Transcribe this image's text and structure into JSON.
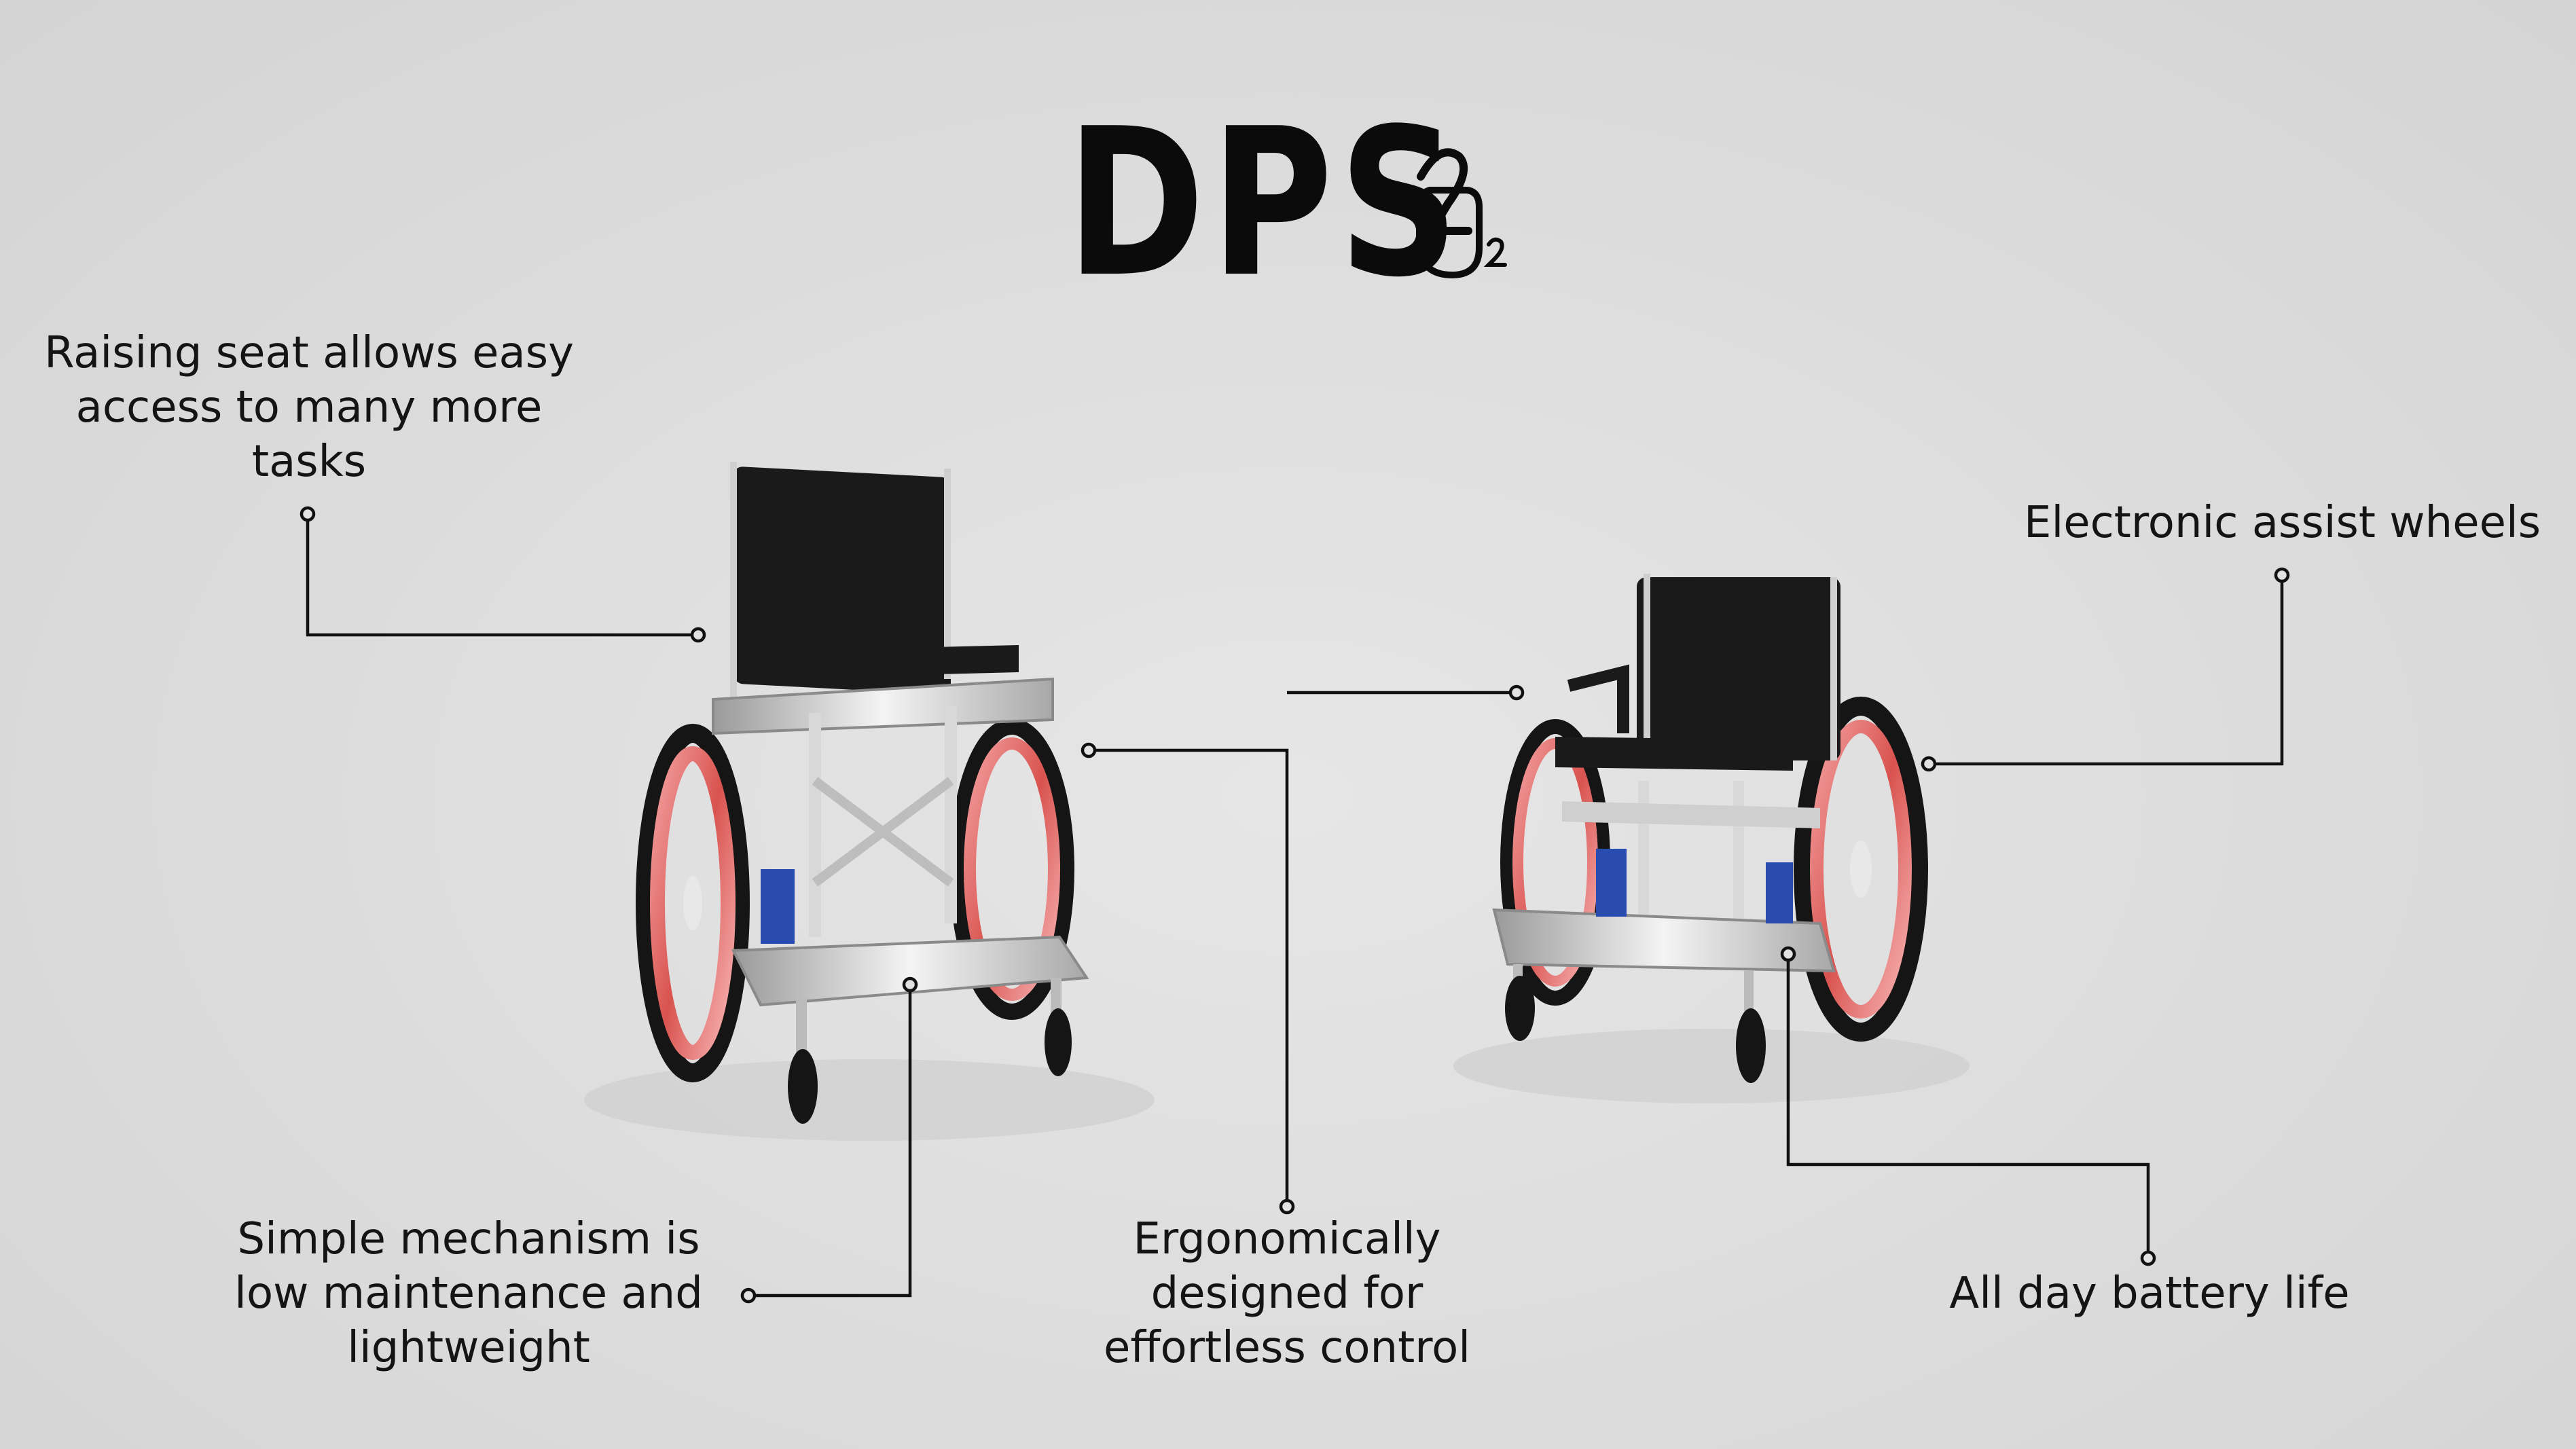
{
  "logo": {
    "text": "DPS",
    "mark_icon": "d2-monogram-icon"
  },
  "callouts": {
    "raising_seat": {
      "lines": [
        "Raising seat allows easy",
        "access to many more",
        "tasks"
      ]
    },
    "electronic_wheels": {
      "lines": [
        "Electronic assist wheels"
      ]
    },
    "simple_mechanism": {
      "lines": [
        "Simple mechanism is",
        "low maintenance and",
        "lightweight"
      ]
    },
    "ergonomic": {
      "lines": [
        "Ergonomically",
        "designed for",
        "effortless control"
      ]
    },
    "battery": {
      "lines": [
        "All day battery life"
      ]
    }
  },
  "colors": {
    "background": "#dcdcdc",
    "text": "#111111",
    "seat": "#1a1a1a",
    "frame": "#d9d9d9",
    "wheel_rim": "#e06a6a",
    "tire": "#151515",
    "motor": "#2a4bb0"
  }
}
